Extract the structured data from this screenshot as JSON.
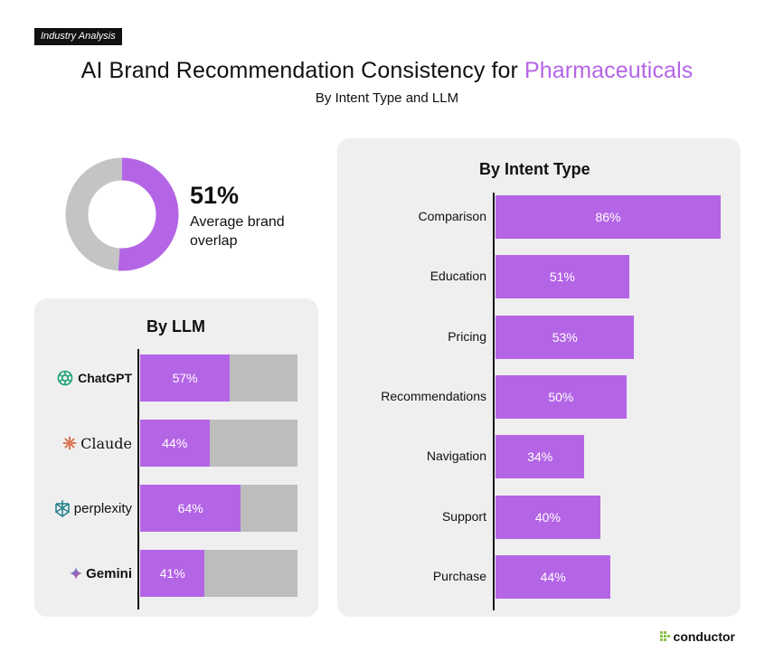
{
  "tag": "Industry Analysis",
  "title_main": "AI Brand Recommendation Consistency for ",
  "title_accent": "Pharmaceuticals",
  "subtitle": "By Intent Type and LLM",
  "colors": {
    "accent": "#b465e6",
    "track": "#bdbdbd",
    "donut_rest": "#c4c4c4",
    "panel": "#efefef"
  },
  "average": {
    "value": "51%",
    "label": "Average brand overlap",
    "fraction": 0.51
  },
  "brand_logo": "conductor",
  "chart_data": [
    {
      "type": "bar",
      "title": "By LLM",
      "orientation": "horizontal",
      "stacked_remainder": true,
      "categories": [
        "ChatGPT",
        "Claude",
        "perplexity",
        "Gemini"
      ],
      "icons": [
        "openai-icon",
        "claude-sparkle-icon",
        "perplexity-icon",
        "gemini-sparkle-icon"
      ],
      "values": [
        57,
        44,
        64,
        41
      ],
      "labels": [
        "57%",
        "44%",
        "64%",
        "41%"
      ],
      "xlim": [
        0,
        100
      ]
    },
    {
      "type": "bar",
      "title": "By Intent Type",
      "orientation": "horizontal",
      "categories": [
        "Comparison",
        "Education",
        "Pricing",
        "Recommendations",
        "Navigation",
        "Support",
        "Purchase"
      ],
      "values": [
        86,
        51,
        53,
        50,
        34,
        40,
        44
      ],
      "labels": [
        "86%",
        "51%",
        "53%",
        "50%",
        "34%",
        "40%",
        "44%"
      ],
      "xlim": [
        0,
        86
      ]
    }
  ]
}
